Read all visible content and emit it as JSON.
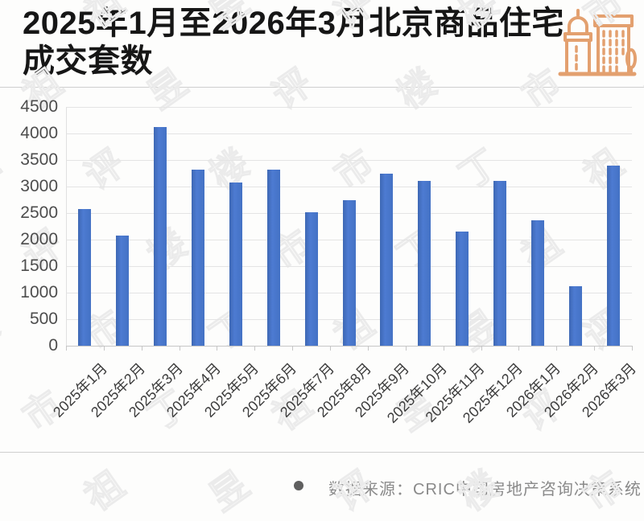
{
  "header": {
    "title": "2025年1月至2026年3月北京商品住宅成交套数",
    "icon": "city-buildings-icon",
    "icon_color": "#E3A06F"
  },
  "chart_data": {
    "type": "bar",
    "title": "2025年1月至2026年3月北京商品住宅成交套数",
    "categories": [
      "2025年1月",
      "2025年2月",
      "2025年3月",
      "2025年4月",
      "2025年5月",
      "2025年6月",
      "2025年7月",
      "2025年8月",
      "2025年9月",
      "2025年10月",
      "2025年11月",
      "2025年12月",
      "2026年1月",
      "2026年2月",
      "2026年3月"
    ],
    "values": [
      2580,
      2080,
      4120,
      3320,
      3080,
      3320,
      2520,
      2740,
      3240,
      3110,
      2150,
      3110,
      2360,
      1120,
      3390
    ],
    "xlabel": "",
    "ylabel": "",
    "ylim": [
      0,
      4500
    ],
    "y_ticks": [
      4500,
      4000,
      3500,
      3000,
      2500,
      2000,
      1500,
      1000,
      500,
      0
    ],
    "bar_color": "#4472C4",
    "grid": true,
    "legend": "none"
  },
  "footer": {
    "source_text": "数据来源：CRIC中国房地产咨询决策系统"
  },
  "watermark": {
    "text": "丁祖昱评楼市"
  }
}
